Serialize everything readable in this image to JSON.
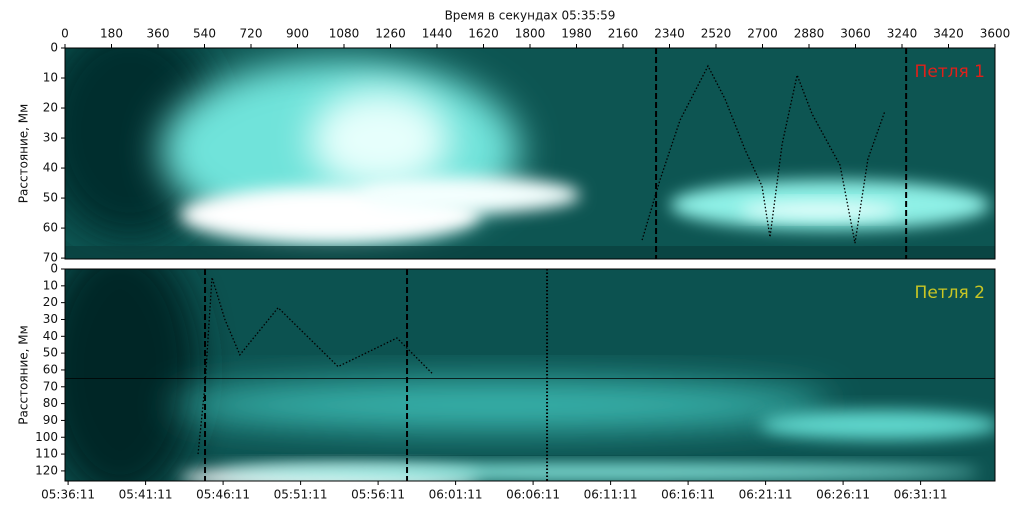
{
  "chart_data": [
    {
      "type": "heatmap",
      "xlabel": "Время в секундах 05:35:59",
      "ylabel": "Расстояние, Мм",
      "label": "Петля 1",
      "label_color": "#e0201a",
      "xlim": [
        0,
        3600
      ],
      "xticks": [
        0,
        180,
        360,
        540,
        720,
        900,
        1080,
        1260,
        1440,
        1620,
        1800,
        1980,
        2160,
        2340,
        2520,
        2700,
        2880,
        3060,
        3240,
        3420,
        3600
      ],
      "ylim": [
        0,
        70.3
      ],
      "yticks": [
        0,
        10,
        20,
        30,
        40,
        50,
        60,
        70
      ],
      "vlines": [
        {
          "x": 2288,
          "style": "dashed"
        },
        {
          "x": 3256,
          "style": "dashed"
        }
      ],
      "series": [
        {
          "color": "#000000",
          "x": [
            2234,
            2303,
            2381,
            2489,
            2555,
            2633,
            2698,
            2729,
            2776,
            2834,
            2892,
            3000,
            3058,
            3108,
            3174
          ],
          "values": [
            64,
            44,
            24,
            6,
            17,
            34,
            46,
            63,
            32,
            9,
            22,
            39,
            65,
            37,
            21
          ]
        }
      ]
    },
    {
      "type": "heatmap",
      "ylabel": "Расстояние, Мм",
      "label": "Петля 2",
      "label_color": "#c9c624",
      "xlim": [
        0,
        3600
      ],
      "xticks": [
        {
          "value": 12,
          "label": "05:36:11"
        },
        {
          "value": 312,
          "label": "05:41:11"
        },
        {
          "value": 612,
          "label": "05:46:11"
        },
        {
          "value": 912,
          "label": "05:51:11"
        },
        {
          "value": 1212,
          "label": "05:56:11"
        },
        {
          "value": 1512,
          "label": "06:01:11"
        },
        {
          "value": 1812,
          "label": "06:06:11"
        },
        {
          "value": 2112,
          "label": "06:11:11"
        },
        {
          "value": 2412,
          "label": "06:16:11"
        },
        {
          "value": 2712,
          "label": "06:21:11"
        },
        {
          "value": 3012,
          "label": "06:26:11"
        },
        {
          "value": 3312,
          "label": "06:31:11"
        }
      ],
      "ylim": [
        0,
        126
      ],
      "yticks": [
        0,
        10,
        20,
        30,
        40,
        50,
        60,
        70,
        80,
        90,
        100,
        110,
        120
      ],
      "vlines": [
        {
          "x": 542,
          "style": "dashed"
        },
        {
          "x": 1324,
          "style": "dashed"
        },
        {
          "x": 1866,
          "style": "dotted"
        }
      ],
      "hlines": [
        65
      ],
      "series": [
        {
          "color": "#000000",
          "x": [
            515,
            542,
            569,
            619,
            677,
            825,
            1057,
            1285,
            1421
          ],
          "values": [
            110,
            69,
            5,
            30,
            51,
            23,
            58,
            41,
            62
          ]
        }
      ]
    }
  ]
}
